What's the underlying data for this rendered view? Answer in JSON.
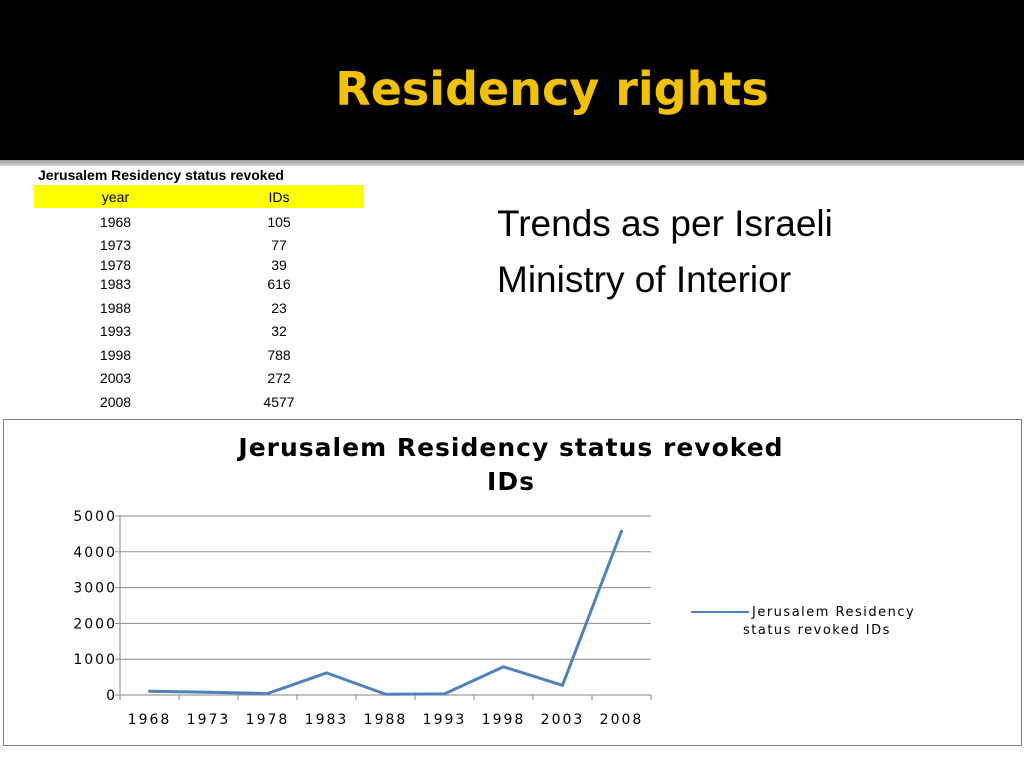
{
  "slide": {
    "title": "Residency rights",
    "side_text_line1": "Trends as per Israeli",
    "side_text_line2": "Ministry of Interior"
  },
  "table": {
    "title": "Jerusalem Residency status revoked",
    "headers": [
      "year",
      "IDs"
    ],
    "rows": [
      [
        "1968",
        "105"
      ],
      [
        "1973",
        "77"
      ],
      [
        "1978",
        "39"
      ],
      [
        "1983",
        "616"
      ],
      [
        "1988",
        "23"
      ],
      [
        "1993",
        "32"
      ],
      [
        "1998",
        "788"
      ],
      [
        "2003",
        "272"
      ],
      [
        "2008",
        "4577"
      ]
    ]
  },
  "colors": {
    "header_bg": "#000000",
    "title_color": "#f2c200",
    "table_header_bg": "#ffff00",
    "series_line": "#4f81bd"
  },
  "chart_data": {
    "type": "line",
    "title": "Jerusalem Residency status revoked IDs",
    "x": [
      "1968",
      "1973",
      "1978",
      "1983",
      "1988",
      "1993",
      "1998",
      "2003",
      "2008"
    ],
    "series": [
      {
        "name": "Jerusalem Residency status revoked IDs",
        "values": [
          105,
          77,
          39,
          616,
          23,
          32,
          788,
          272,
          4577
        ]
      }
    ],
    "ylim": [
      0,
      5000
    ],
    "yticks": [
      0,
      1000,
      2000,
      3000,
      4000,
      5000
    ],
    "grid": true,
    "legend": "right"
  }
}
